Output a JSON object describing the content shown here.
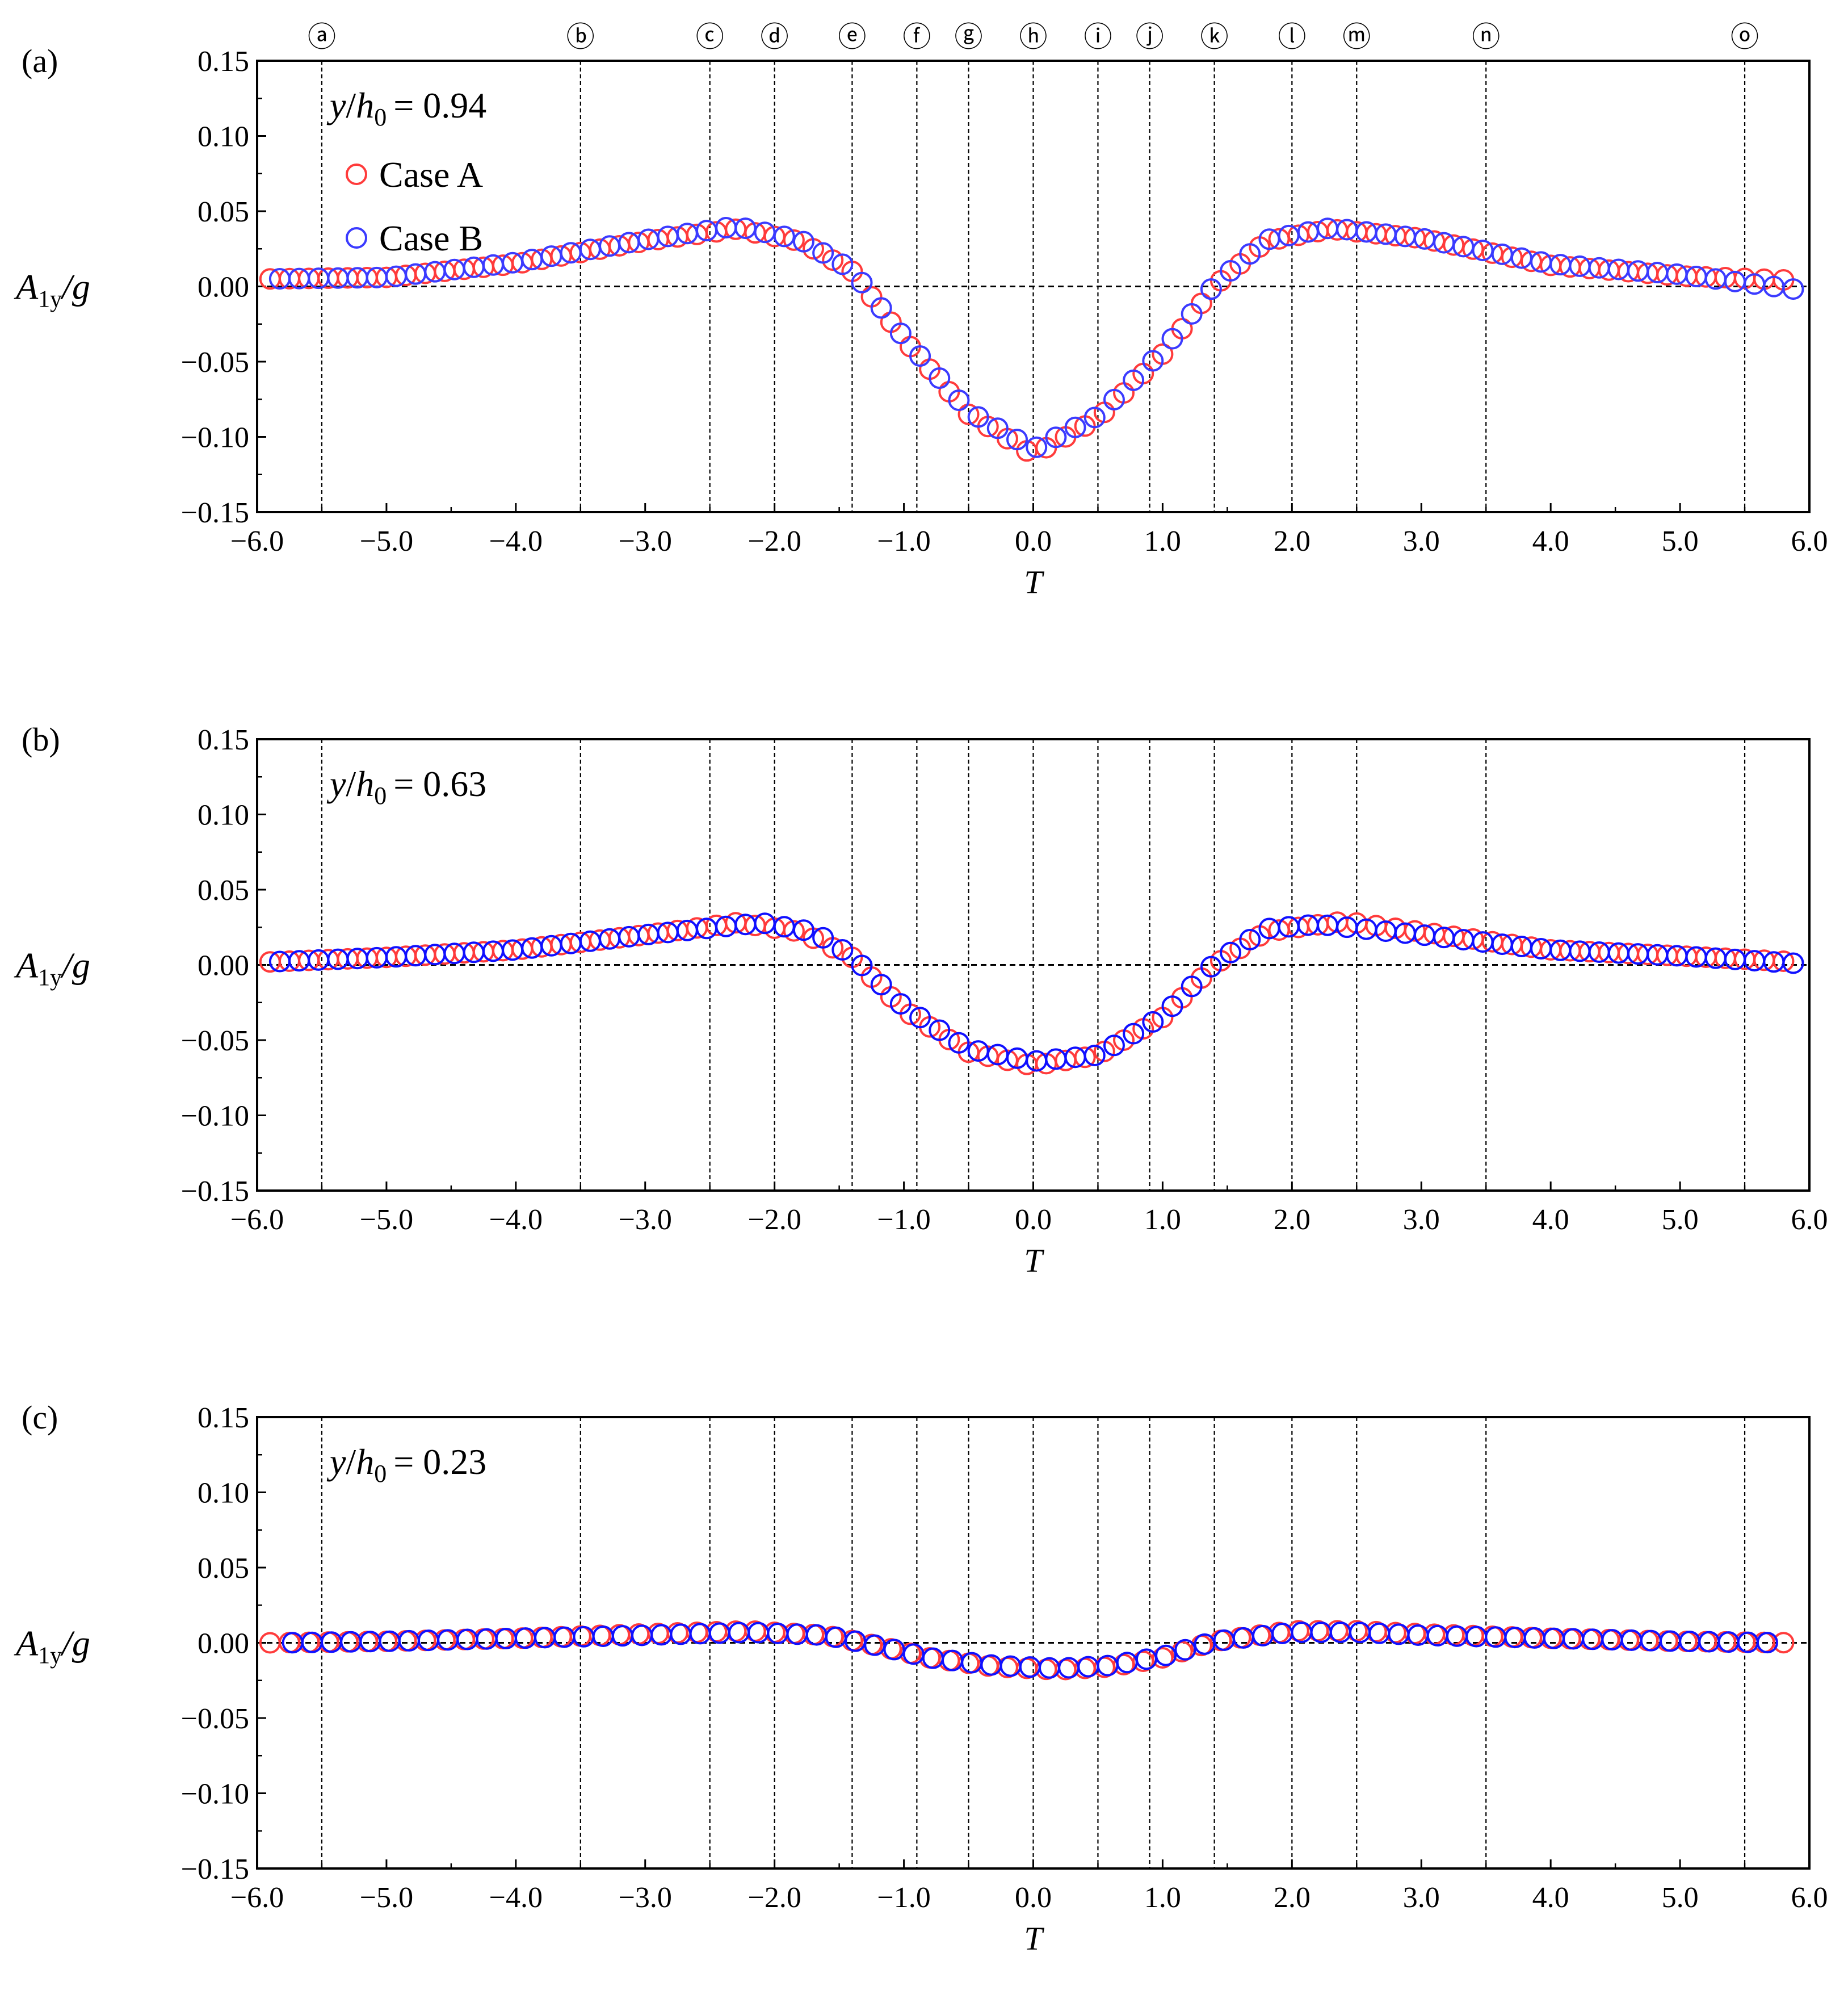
{
  "chart_data": [
    {
      "type": "scatter",
      "panel_label": "(a)",
      "annotation": {
        "var": "y",
        "sub_var": "h",
        "sub": "0",
        "value": "= 0.94"
      },
      "xlabel": "T",
      "ylabel": {
        "main": "A",
        "sub": "1y",
        "tail": "/g"
      },
      "xlim": [
        -6.0,
        6.0
      ],
      "ylim": [
        -0.15,
        0.15
      ],
      "x_ticks": [
        -6.0,
        -5.0,
        -4.0,
        -3.0,
        -2.0,
        -1.0,
        0.0,
        1.0,
        2.0,
        3.0,
        4.0,
        5.0,
        6.0
      ],
      "x_tick_labels": [
        "−6.0",
        "−5.0",
        "−4.0",
        "−3.0",
        "−2.0",
        "−1.0",
        "0.0",
        "1.0",
        "2.0",
        "3.0",
        "4.0",
        "5.0",
        "6.0"
      ],
      "y_ticks": [
        0.15,
        0.1,
        0.05,
        0.0,
        -0.05,
        -0.1,
        -0.15
      ],
      "y_tick_labels": [
        "0.15",
        "0.10",
        "0.05",
        "0.00",
        "−0.05",
        "−0.10",
        "−0.15"
      ],
      "legend": {
        "placement": "top-left",
        "entries": [
          "Case A",
          "Case B"
        ]
      },
      "series": [
        {
          "name": "Case A",
          "color": "#ff3b3b",
          "peak_neg": -0.112,
          "peak_pos": 0.038,
          "x_start": -5.9,
          "x_end": 5.9,
          "profile": [
            [
              -5.9,
              0.005
            ],
            [
              -5.0,
              0.006
            ],
            [
              -4.0,
              0.015
            ],
            [
              -3.0,
              0.03
            ],
            [
              -2.3,
              0.038
            ],
            [
              -1.8,
              0.03
            ],
            [
              -1.4,
              0.01
            ],
            [
              -1.0,
              -0.035
            ],
            [
              -0.5,
              -0.085
            ],
            [
              0.0,
              -0.112
            ],
            [
              0.5,
              -0.088
            ],
            [
              1.0,
              -0.045
            ],
            [
              1.4,
              0.0
            ],
            [
              1.8,
              0.03
            ],
            [
              2.3,
              0.038
            ],
            [
              3.0,
              0.032
            ],
            [
              4.0,
              0.014
            ],
            [
              5.0,
              0.007
            ],
            [
              5.9,
              0.004
            ]
          ]
        },
        {
          "name": "Case B",
          "color": "#3b3bff",
          "peak_neg": -0.108,
          "peak_pos": 0.04,
          "x_start": -5.9,
          "x_end": 5.9,
          "profile": [
            [
              -5.9,
              0.005
            ],
            [
              -5.0,
              0.006
            ],
            [
              -4.0,
              0.016
            ],
            [
              -3.0,
              0.031
            ],
            [
              -2.3,
              0.04
            ],
            [
              -1.8,
              0.031
            ],
            [
              -1.4,
              0.011
            ],
            [
              -1.0,
              -0.034
            ],
            [
              -0.5,
              -0.083
            ],
            [
              0.0,
              -0.108
            ],
            [
              0.5,
              -0.086
            ],
            [
              1.0,
              -0.043
            ],
            [
              1.4,
              0.001
            ],
            [
              1.8,
              0.031
            ],
            [
              2.3,
              0.039
            ],
            [
              3.0,
              0.032
            ],
            [
              4.0,
              0.015
            ],
            [
              5.0,
              0.008
            ],
            [
              5.9,
              -0.002
            ]
          ]
        }
      ]
    },
    {
      "type": "scatter",
      "panel_label": "(b)",
      "annotation": {
        "var": "y",
        "sub_var": "h",
        "sub": "0",
        "value": "= 0.63"
      },
      "xlabel": "T",
      "ylabel": {
        "main": "A",
        "sub": "1y",
        "tail": "/g"
      },
      "xlim": [
        -6.0,
        6.0
      ],
      "ylim": [
        -0.15,
        0.15
      ],
      "x_ticks": [
        -6.0,
        -5.0,
        -4.0,
        -3.0,
        -2.0,
        -1.0,
        0.0,
        1.0,
        2.0,
        3.0,
        4.0,
        5.0,
        6.0
      ],
      "x_tick_labels": [
        "−6.0",
        "−5.0",
        "−4.0",
        "−3.0",
        "−2.0",
        "−1.0",
        "0.0",
        "1.0",
        "2.0",
        "3.0",
        "4.0",
        "5.0",
        "6.0"
      ],
      "y_ticks": [
        0.15,
        0.1,
        0.05,
        0.0,
        -0.05,
        -0.1,
        -0.15
      ],
      "y_tick_labels": [
        "0.15",
        "0.10",
        "0.05",
        "0.00",
        "−0.05",
        "−0.10",
        "−0.15"
      ],
      "series": [
        {
          "name": "Case A",
          "color": "#ff3b3b",
          "x_start": -5.9,
          "x_end": 5.9,
          "profile": [
            [
              -5.9,
              0.002
            ],
            [
              -5.0,
              0.005
            ],
            [
              -4.0,
              0.01
            ],
            [
              -3.0,
              0.02
            ],
            [
              -2.3,
              0.028
            ],
            [
              -1.8,
              0.022
            ],
            [
              -1.4,
              0.005
            ],
            [
              -1.0,
              -0.03
            ],
            [
              -0.5,
              -0.058
            ],
            [
              0.0,
              -0.067
            ],
            [
              0.5,
              -0.06
            ],
            [
              1.0,
              -0.035
            ],
            [
              1.4,
              0.0
            ],
            [
              1.8,
              0.022
            ],
            [
              2.4,
              0.029
            ],
            [
              3.0,
              0.022
            ],
            [
              4.0,
              0.01
            ],
            [
              5.0,
              0.006
            ],
            [
              5.9,
              0.002
            ]
          ]
        },
        {
          "name": "Case B",
          "color": "#1010ff",
          "x_start": -5.9,
          "x_end": 5.9,
          "profile": [
            [
              -5.9,
              0.002
            ],
            [
              -5.0,
              0.005
            ],
            [
              -4.0,
              0.01
            ],
            [
              -3.0,
              0.02
            ],
            [
              -2.1,
              0.028
            ],
            [
              -1.7,
              0.022
            ],
            [
              -1.4,
              0.006
            ],
            [
              -1.0,
              -0.028
            ],
            [
              -0.5,
              -0.056
            ],
            [
              0.0,
              -0.064
            ],
            [
              0.5,
              -0.06
            ],
            [
              1.0,
              -0.034
            ],
            [
              1.4,
              0.001
            ],
            [
              1.8,
              0.024
            ],
            [
              2.2,
              0.027
            ],
            [
              3.0,
              0.02
            ],
            [
              4.0,
              0.01
            ],
            [
              5.0,
              0.006
            ],
            [
              5.9,
              0.001
            ]
          ]
        }
      ]
    },
    {
      "type": "scatter",
      "panel_label": "(c)",
      "annotation": {
        "var": "y",
        "sub_var": "h",
        "sub": "0",
        "value": "= 0.23"
      },
      "xlabel": "T",
      "ylabel": {
        "main": "A",
        "sub": "1y",
        "tail": "/g"
      },
      "xlim": [
        -6.0,
        6.0
      ],
      "ylim": [
        -0.15,
        0.15
      ],
      "x_ticks": [
        -6.0,
        -5.0,
        -4.0,
        -3.0,
        -2.0,
        -1.0,
        0.0,
        1.0,
        2.0,
        3.0,
        4.0,
        5.0,
        6.0
      ],
      "x_tick_labels": [
        "−6.0",
        "−5.0",
        "−4.0",
        "−3.0",
        "−2.0",
        "−1.0",
        "0.0",
        "1.0",
        "2.0",
        "3.0",
        "4.0",
        "5.0",
        "6.0"
      ],
      "y_ticks": [
        0.15,
        0.1,
        0.05,
        0.0,
        -0.05,
        -0.1,
        -0.15
      ],
      "y_tick_labels": [
        "0.15",
        "0.10",
        "0.05",
        "0.00",
        "−0.05",
        "−0.10",
        "−0.15"
      ],
      "series": [
        {
          "name": "Case A",
          "color": "#ff3b3b",
          "x_start": -5.9,
          "x_end": 5.9,
          "profile": [
            [
              -5.9,
              0.0
            ],
            [
              -5.0,
              0.001
            ],
            [
              -4.0,
              0.003
            ],
            [
              -3.0,
              0.006
            ],
            [
              -2.2,
              0.008
            ],
            [
              -1.6,
              0.005
            ],
            [
              -1.2,
              -0.002
            ],
            [
              -0.8,
              -0.01
            ],
            [
              -0.3,
              -0.016
            ],
            [
              0.2,
              -0.018
            ],
            [
              0.6,
              -0.016
            ],
            [
              1.0,
              -0.01
            ],
            [
              1.4,
              0.001
            ],
            [
              2.0,
              0.008
            ],
            [
              2.5,
              0.008
            ],
            [
              3.0,
              0.006
            ],
            [
              4.0,
              0.003
            ],
            [
              5.0,
              0.001
            ],
            [
              5.9,
              0.0
            ]
          ]
        },
        {
          "name": "Case B",
          "color": "#1010ff",
          "x_start": -5.8,
          "x_end": 5.8,
          "profile": [
            [
              -5.8,
              0.0
            ],
            [
              -5.0,
              0.001
            ],
            [
              -4.0,
              0.003
            ],
            [
              -3.0,
              0.005
            ],
            [
              -2.2,
              0.007
            ],
            [
              -1.6,
              0.005
            ],
            [
              -1.2,
              -0.002
            ],
            [
              -0.8,
              -0.01
            ],
            [
              -0.3,
              -0.015
            ],
            [
              0.2,
              -0.017
            ],
            [
              0.6,
              -0.015
            ],
            [
              1.0,
              -0.009
            ],
            [
              1.4,
              0.001
            ],
            [
              2.0,
              0.007
            ],
            [
              2.5,
              0.007
            ],
            [
              3.0,
              0.005
            ],
            [
              4.0,
              0.003
            ],
            [
              5.0,
              0.001
            ],
            [
              5.8,
              0.0
            ]
          ]
        }
      ]
    }
  ],
  "event_markers": {
    "labels": [
      "ⓐ",
      "ⓑ",
      "ⓒ",
      "ⓓ",
      "ⓔ",
      "ⓕ",
      "ⓖ",
      "ⓗ",
      "ⓘ",
      "ⓙ",
      "ⓚ",
      "ⓛ",
      "ⓜ",
      "ⓝ",
      "ⓞ"
    ],
    "t_values": [
      -5.5,
      -3.5,
      -2.5,
      -2.0,
      -1.4,
      -0.9,
      -0.5,
      0.0,
      0.5,
      0.9,
      1.4,
      2.0,
      2.5,
      3.5,
      5.5
    ]
  }
}
